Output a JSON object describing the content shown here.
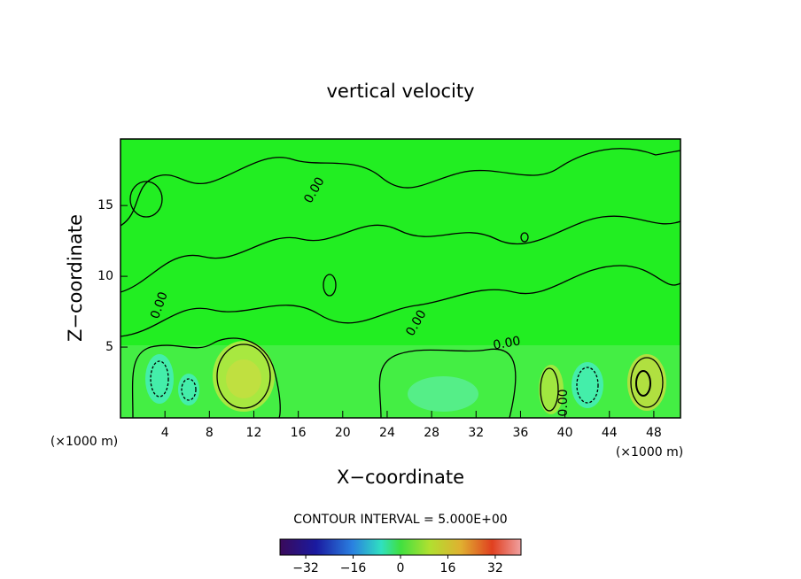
{
  "chart_data": {
    "type": "contour",
    "title": "vertical velocity",
    "x_label": "X−coordinate",
    "y_label": "Z−coordinate",
    "x_unit_label": "(×1000 m)",
    "x_unit_label_right": "(×1000 m)",
    "xlim": [
      0,
      50.4
    ],
    "ylim": [
      0,
      19.7
    ],
    "xticks": [
      4,
      8,
      12,
      16,
      20,
      24,
      28,
      32,
      36,
      40,
      44,
      48
    ],
    "yticks": [
      5,
      10,
      15
    ],
    "contour_labels": [
      "0.00",
      "0.00",
      "0.00",
      "0.00",
      "0.00"
    ],
    "contour_interval_label": "CONTOUR INTERVAL = 5.000E+00",
    "colorbar": {
      "clim": [
        -40.7,
        40.7
      ],
      "ticks": [
        {
          "value": -32,
          "label": "−32"
        },
        {
          "value": -16,
          "label": "−16"
        },
        0,
        16,
        32
      ]
    }
  }
}
